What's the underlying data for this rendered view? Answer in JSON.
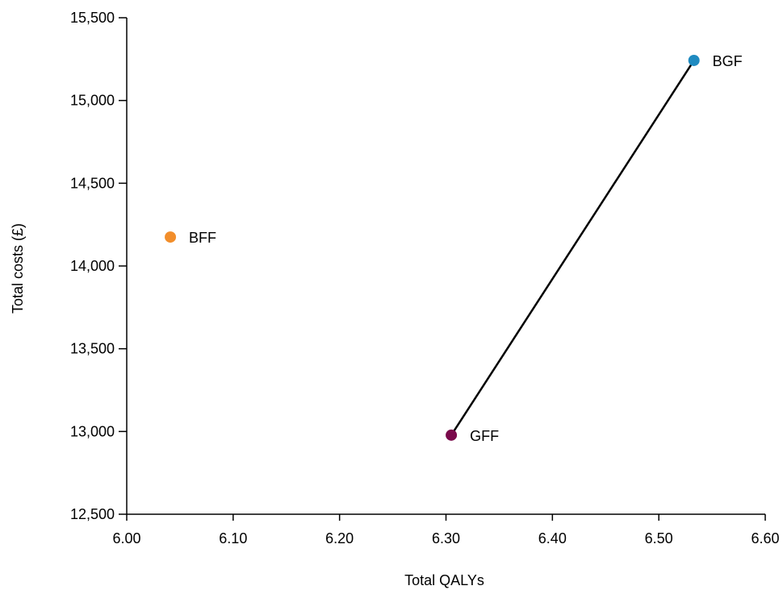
{
  "chart_data": {
    "type": "scatter",
    "title": "",
    "xlabel": "Total QALYs",
    "ylabel": "Total costs (£)",
    "xlim": [
      6.0,
      6.6
    ],
    "ylim": [
      12500,
      15500
    ],
    "x_ticks": [
      {
        "value": 6.0,
        "label": "6.00"
      },
      {
        "value": 6.1,
        "label": "6.10"
      },
      {
        "value": 6.2,
        "label": "6.20"
      },
      {
        "value": 6.3,
        "label": "6.30"
      },
      {
        "value": 6.4,
        "label": "6.40"
      },
      {
        "value": 6.5,
        "label": "6.50"
      },
      {
        "value": 6.6,
        "label": "6.60"
      }
    ],
    "y_ticks": [
      {
        "value": 12500,
        "label": "12,500"
      },
      {
        "value": 13000,
        "label": "13,000"
      },
      {
        "value": 13500,
        "label": "13,500"
      },
      {
        "value": 14000,
        "label": "14,000"
      },
      {
        "value": 14500,
        "label": "14,500"
      },
      {
        "value": 15000,
        "label": "15,000"
      },
      {
        "value": 15500,
        "label": "15,500"
      }
    ],
    "grid": false,
    "points": [
      {
        "label": "BFF",
        "x": 6.041,
        "y": 14175,
        "color": "#F28E2B"
      },
      {
        "label": "GFF",
        "x": 6.305,
        "y": 12978,
        "color": "#7A0A4B"
      },
      {
        "label": "BGF",
        "x": 6.533,
        "y": 15242,
        "color": "#1F8AC0"
      }
    ],
    "frontier": {
      "from": "GFF",
      "to": "BGF",
      "color": "#000000"
    }
  }
}
